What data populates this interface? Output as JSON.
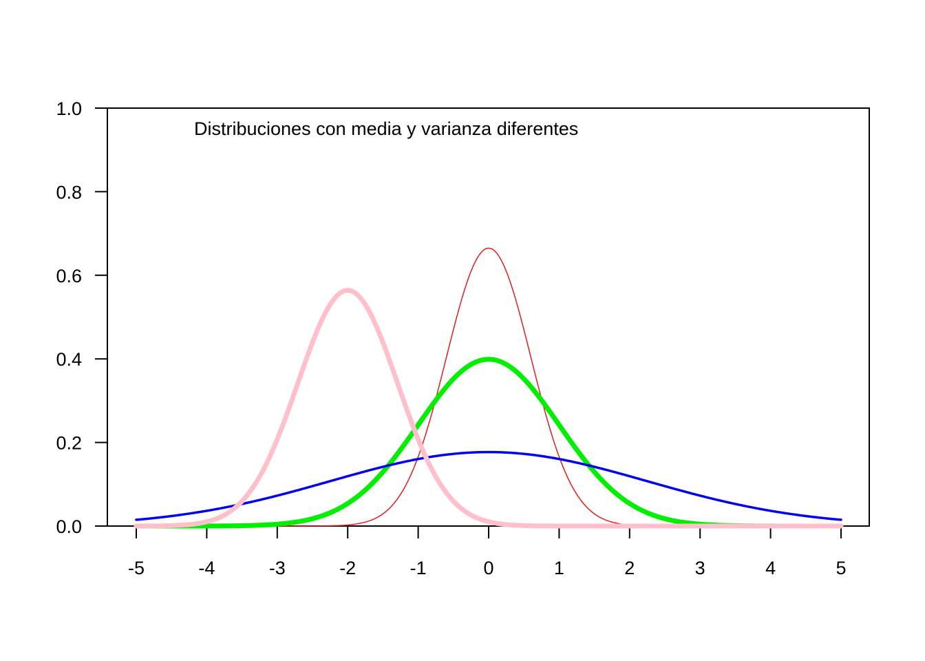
{
  "chart_data": {
    "type": "line",
    "title": "",
    "xlabel": "",
    "ylabel": "",
    "annotation": "Distribuciones con media y varianza diferentes",
    "xlim": [
      -5,
      5
    ],
    "ylim": [
      0,
      1
    ],
    "x_ticks": [
      -5,
      -4,
      -3,
      -2,
      -1,
      0,
      1,
      2,
      3,
      4,
      5
    ],
    "x_tick_labels": [
      "-5",
      "-4",
      "-3",
      "-2",
      "-1",
      "0",
      "1",
      "2",
      "3",
      "4",
      "5"
    ],
    "y_ticks": [
      0,
      0.2,
      0.4,
      0.6,
      0.8,
      1.0
    ],
    "y_tick_labels": [
      "0.0",
      "0.2",
      "0.4",
      "0.6",
      "0.8",
      "1.0"
    ],
    "grid": false,
    "legend": "none",
    "series": [
      {
        "distribution": "normal",
        "mean": 0,
        "sd": 0.6,
        "peak": 0.665,
        "color": "#e41a1c",
        "line": "thin"
      },
      {
        "distribution": "normal",
        "mean": 0,
        "sd": 1,
        "peak": 0.399,
        "color": "#00ee00",
        "line": "thick"
      },
      {
        "distribution": "normal",
        "mean": 0,
        "sd": 2.25,
        "peak": 0.177,
        "color": "#0000ee",
        "line": "medium"
      },
      {
        "distribution": "normal",
        "mean": -2,
        "sd": 0.707,
        "peak": 0.564,
        "color": "#ffc0cb",
        "line": "thick"
      }
    ]
  }
}
